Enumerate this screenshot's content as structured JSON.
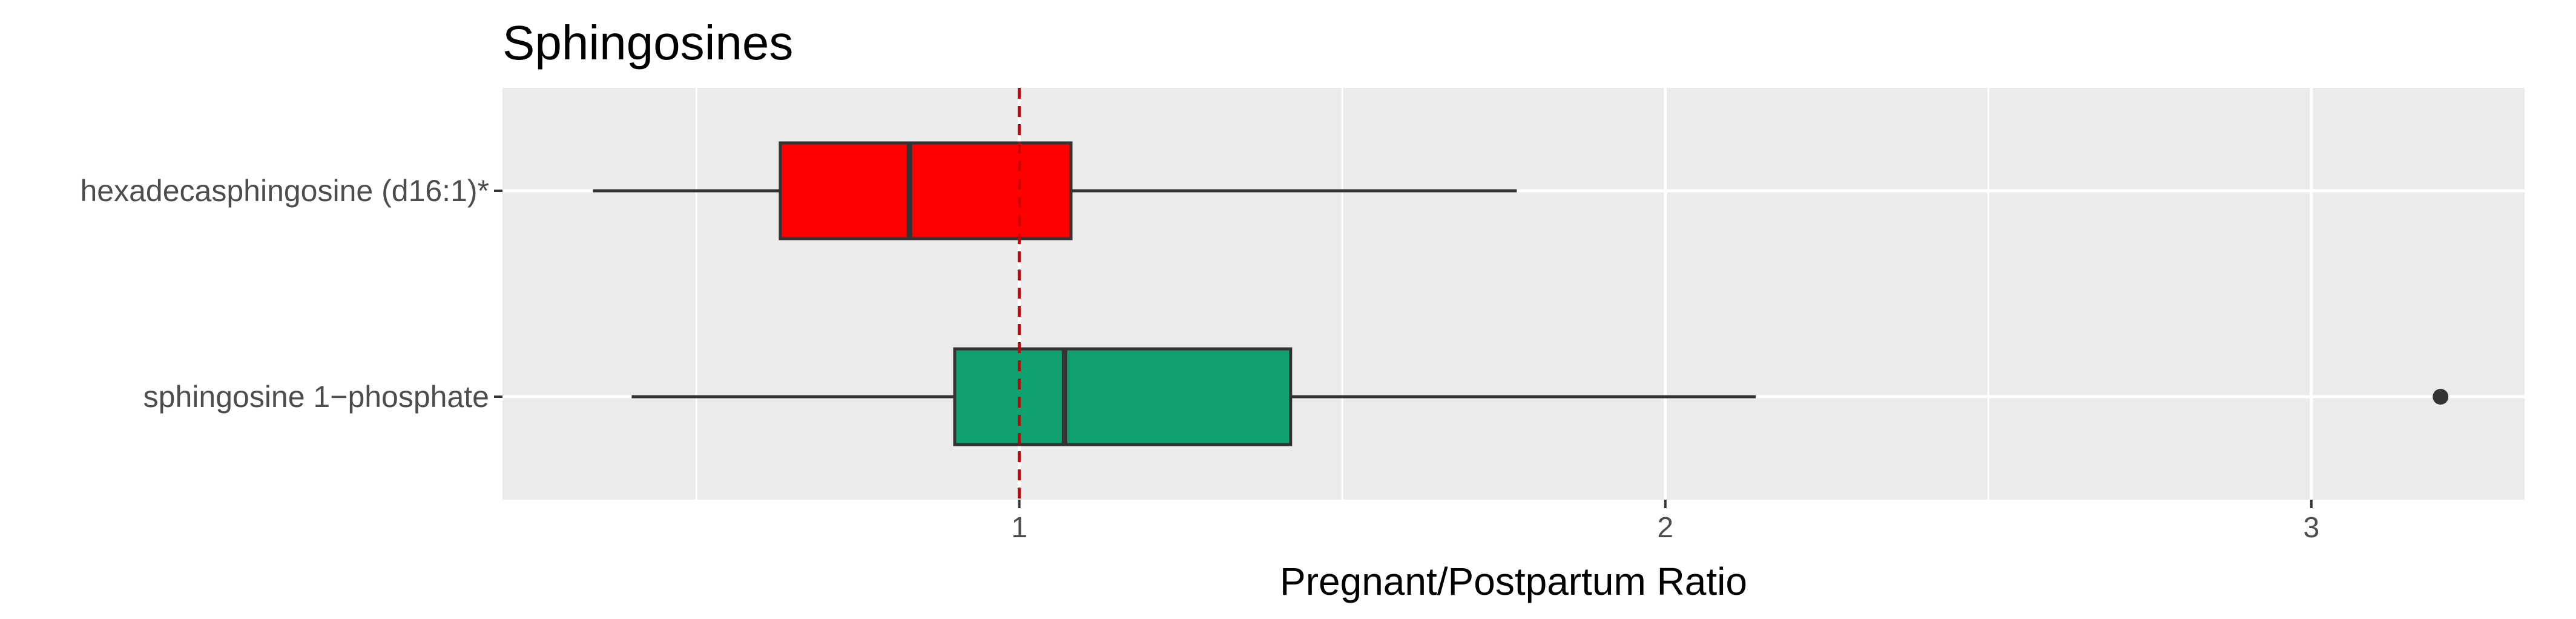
{
  "chart_data": {
    "type": "boxplot",
    "orientation": "horizontal",
    "title": "Sphingosines",
    "xlabel": "Pregnant/Postpartum Ratio",
    "ylabel": "",
    "xlim": [
      0.2,
      3.33
    ],
    "xticks": [
      1,
      2,
      3
    ],
    "grid": true,
    "reference_line": {
      "x": 1,
      "style": "dashed",
      "color": "#cc0000"
    },
    "categories": [
      "hexadecasphingosine (d16:1)*",
      "sphingosine 1−phosphate"
    ],
    "series": [
      {
        "category": "hexadecasphingosine (d16:1)*",
        "color": "#ff0000",
        "whisker_low": 0.34,
        "q1": 0.63,
        "median": 0.83,
        "q3": 1.08,
        "whisker_high": 1.77,
        "outliers": []
      },
      {
        "category": "sphingosine 1−phosphate",
        "color": "#10a170",
        "whisker_low": 0.4,
        "q1": 0.9,
        "median": 1.07,
        "q3": 1.42,
        "whisker_high": 2.14,
        "outliers": [
          3.2
        ]
      }
    ]
  }
}
